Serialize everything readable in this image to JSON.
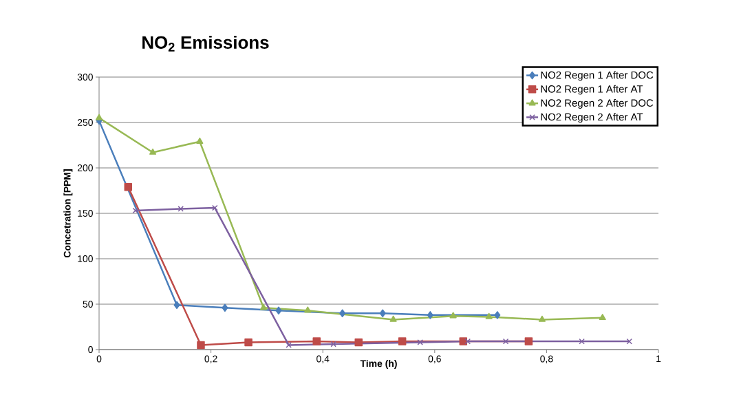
{
  "chart_data": {
    "type": "line",
    "title": "NO$_{2}$ Emissions",
    "xlabel": "Time (h)",
    "ylabel": "Concetration [PPM]",
    "xlim": [
      0,
      1
    ],
    "ylim": [
      0,
      300
    ],
    "xticks": [
      0,
      {
        "value": 0.2,
        "label": "0,2"
      },
      {
        "value": 0.4,
        "label": "0,4"
      },
      {
        "value": 0.6,
        "label": "0,6"
      },
      {
        "value": 0.8,
        "label": "0,8"
      },
      1
    ],
    "yticks": [
      0,
      50,
      100,
      150,
      200,
      250,
      300
    ],
    "grid": "y",
    "legend": "top right",
    "line_style": "solid",
    "series": [
      {
        "name": "NO2 Regen 1 After DOC",
        "color": "#4a7ebb",
        "marker": "diamond",
        "x": [
          0,
          0.139,
          0.225,
          0.321,
          0.435,
          0.507,
          0.592,
          0.712
        ],
        "values": [
          252,
          49,
          46,
          43,
          40,
          40,
          38,
          38
        ]
      },
      {
        "name": "NO2 Regen 1 After AT",
        "color": "#be4b48",
        "marker": "square",
        "x": [
          0.052,
          0.182,
          0.267,
          0.389,
          0.464,
          0.542,
          0.651,
          0.768
        ],
        "values": [
          179,
          5,
          8,
          9,
          8,
          9,
          9,
          9
        ]
      },
      {
        "name": "NO2 Regen 2 After DOC",
        "color": "#98b954",
        "marker": "triangle",
        "x": [
          0,
          0.096,
          0.18,
          0.294,
          0.373,
          0.526,
          0.633,
          0.697,
          0.792,
          0.9
        ],
        "values": [
          255,
          217,
          229,
          46,
          43,
          33,
          37,
          36,
          33,
          35
        ]
      },
      {
        "name": "NO2 Regen 2 After AT",
        "color": "#7d60a0",
        "marker": "cross",
        "x": [
          0.065,
          0.146,
          0.207,
          0.339,
          0.419,
          0.574,
          0.659,
          0.727,
          0.863,
          0.948
        ],
        "values": [
          153,
          155,
          156,
          5,
          6,
          8,
          9,
          9,
          9,
          9
        ]
      }
    ]
  }
}
